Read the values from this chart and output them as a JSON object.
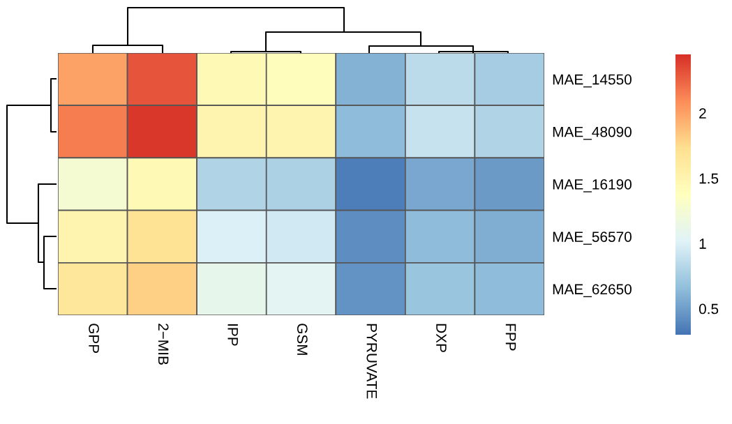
{
  "chart_data": {
    "type": "heatmap",
    "categories": [
      "GPP",
      "2−MIB",
      "IPP",
      "GSM",
      "PYRUVATE",
      "DXP",
      "FPP"
    ],
    "y_categories": [
      "MAE_14550",
      "MAE_48090",
      "MAE_16190",
      "MAE_56570",
      "MAE_62650"
    ],
    "cells": [
      [
        2.0,
        2.3,
        1.45,
        1.4,
        0.6,
        0.85,
        0.75
      ],
      [
        2.15,
        2.42,
        1.5,
        1.5,
        0.65,
        0.9,
        0.8
      ],
      [
        1.25,
        1.45,
        0.8,
        0.78,
        0.35,
        0.55,
        0.48
      ],
      [
        1.5,
        1.7,
        1.0,
        0.95,
        0.42,
        0.65,
        0.58
      ],
      [
        1.65,
        1.8,
        1.1,
        1.05,
        0.45,
        0.7,
        0.65
      ]
    ],
    "clim": [
      0.3,
      2.45
    ],
    "cticks": [
      0.5,
      1,
      1.5,
      2
    ]
  }
}
